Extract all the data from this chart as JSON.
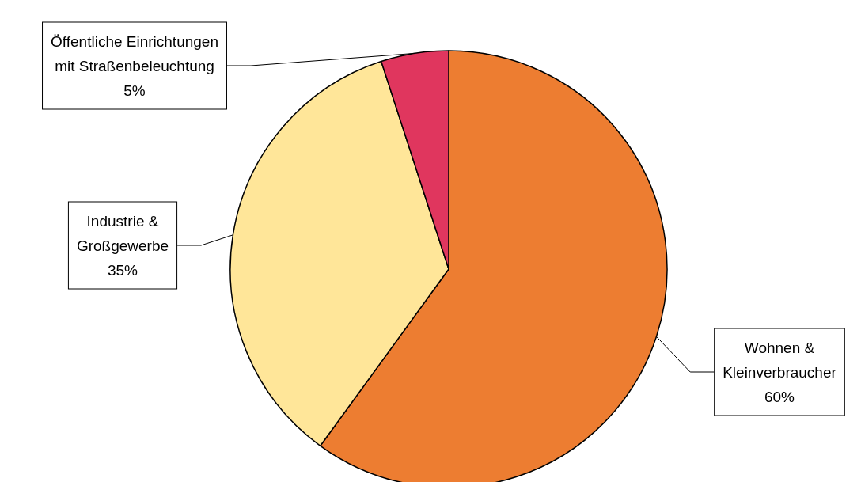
{
  "chart_data": {
    "type": "pie",
    "categories": [
      "Wohnen &\nKleinverbraucher",
      "Industrie &\nGroßgewerbe",
      "Öffentliche Einrichtungen\nmit Straßenbeleuchtung"
    ],
    "values": [
      60,
      35,
      5
    ],
    "value_labels": [
      "60%",
      "35%",
      "5%"
    ],
    "colors": [
      "#ed7d31",
      "#ffe699",
      "#e0365e"
    ]
  }
}
